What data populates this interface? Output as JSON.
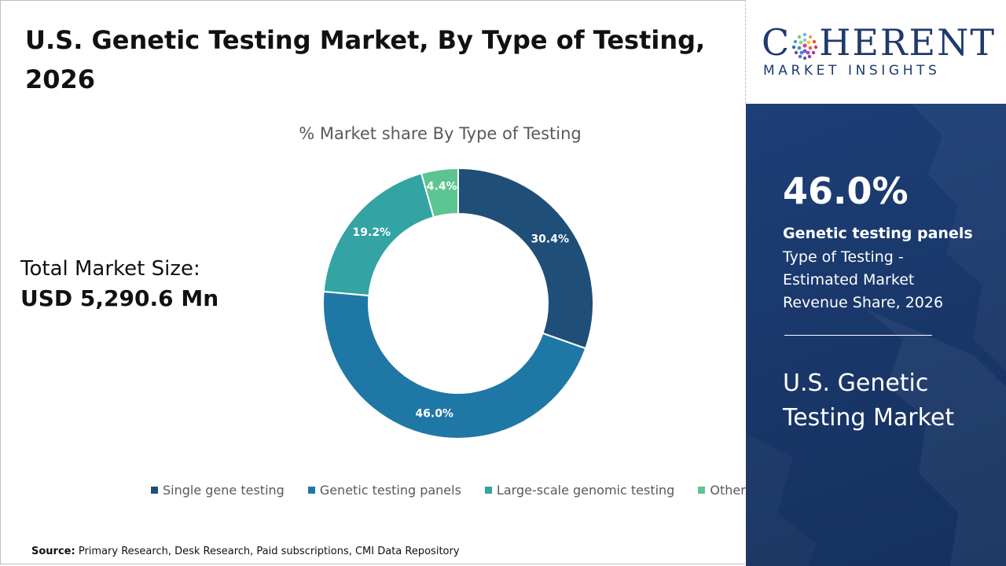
{
  "title": "U.S. Genetic Testing Market, By Type of Testing, 2026",
  "market_size": {
    "label": "Total Market Size:",
    "value": "USD 5,290.6 Mn"
  },
  "chart_data": {
    "type": "pie",
    "title": "% Market share By Type of Testing",
    "categories": [
      "Single gene testing",
      "Genetic testing panels",
      "Large-scale genomic testing",
      "Others"
    ],
    "values": [
      30.4,
      46.0,
      19.2,
      4.4
    ],
    "data_labels": [
      "30.4%",
      "46.0%",
      "19.2%",
      "4.4%"
    ],
    "colors": [
      "#1f4e79",
      "#1f77a6",
      "#33a3a3",
      "#5cc491"
    ],
    "donut": true,
    "legend_position": "bottom"
  },
  "source": {
    "label": "Source:",
    "text": "Primary Research, Desk Research, Paid subscriptions, CMI Data Repository"
  },
  "logo": {
    "main_pre": "C",
    "main_post": "HERENT",
    "sub": "MARKET INSIGHTS"
  },
  "side_panel": {
    "highlight_value": "46.0%",
    "highlight_label": "Genetic testing panels",
    "highlight_desc": "Type of Testing - Estimated Market Revenue Share, 2026",
    "market_name": "U.S. Genetic Testing Market"
  },
  "colors": {
    "panel_bg": "#1b3a6e",
    "brand": "#1e3a6e"
  }
}
